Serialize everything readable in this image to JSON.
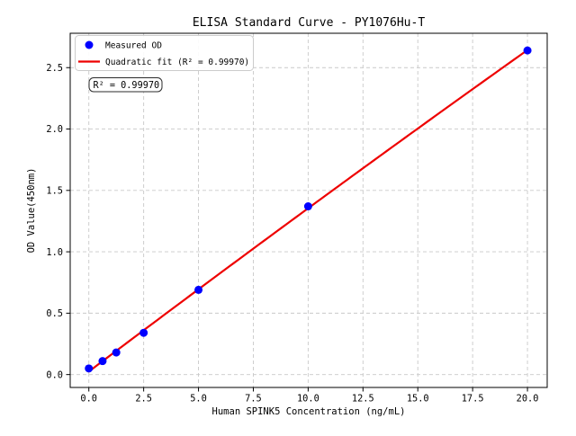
{
  "chart_data": {
    "type": "scatter",
    "title": "ELISA Standard Curve - PY1076Hu-T",
    "xlabel": "Human SPINK5 Concentration (ng/mL)",
    "ylabel": "OD Value(450nm)",
    "xlim": [
      -0.85,
      20.9
    ],
    "ylim": [
      -0.105,
      2.78
    ],
    "x_ticks": [
      0,
      2.5,
      5,
      7.5,
      10,
      12.5,
      15,
      17.5,
      20
    ],
    "y_ticks": [
      0,
      0.5,
      1,
      1.5,
      2,
      2.5
    ],
    "grid": true,
    "grid_style": "dashed",
    "points": {
      "x": [
        0,
        0.625,
        1.25,
        2.5,
        5,
        10,
        20
      ],
      "y": [
        0.05,
        0.11,
        0.18,
        0.34,
        0.69,
        1.37,
        2.64
      ]
    },
    "fit": {
      "type": "quadratic",
      "range": [
        0,
        20
      ],
      "r_squared": "0.99970"
    },
    "legend": {
      "position": "upper-left",
      "entries": [
        {
          "label": "Measured OD",
          "marker": "dot",
          "color": "#0000ff"
        },
        {
          "label": "Quadratic fit (R² = 0.99970)",
          "marker": "line",
          "color": "#ee0000"
        }
      ]
    },
    "annotation": {
      "text": "R² = 0.99970"
    },
    "colors": {
      "points": "#0000ff",
      "fit_line": "#ee0000",
      "grid": "#c9c9c9",
      "spine": "#000000",
      "legend_border": "#cccccc",
      "annotation_border": "#2b2b2b",
      "background": "#ffffff"
    }
  }
}
